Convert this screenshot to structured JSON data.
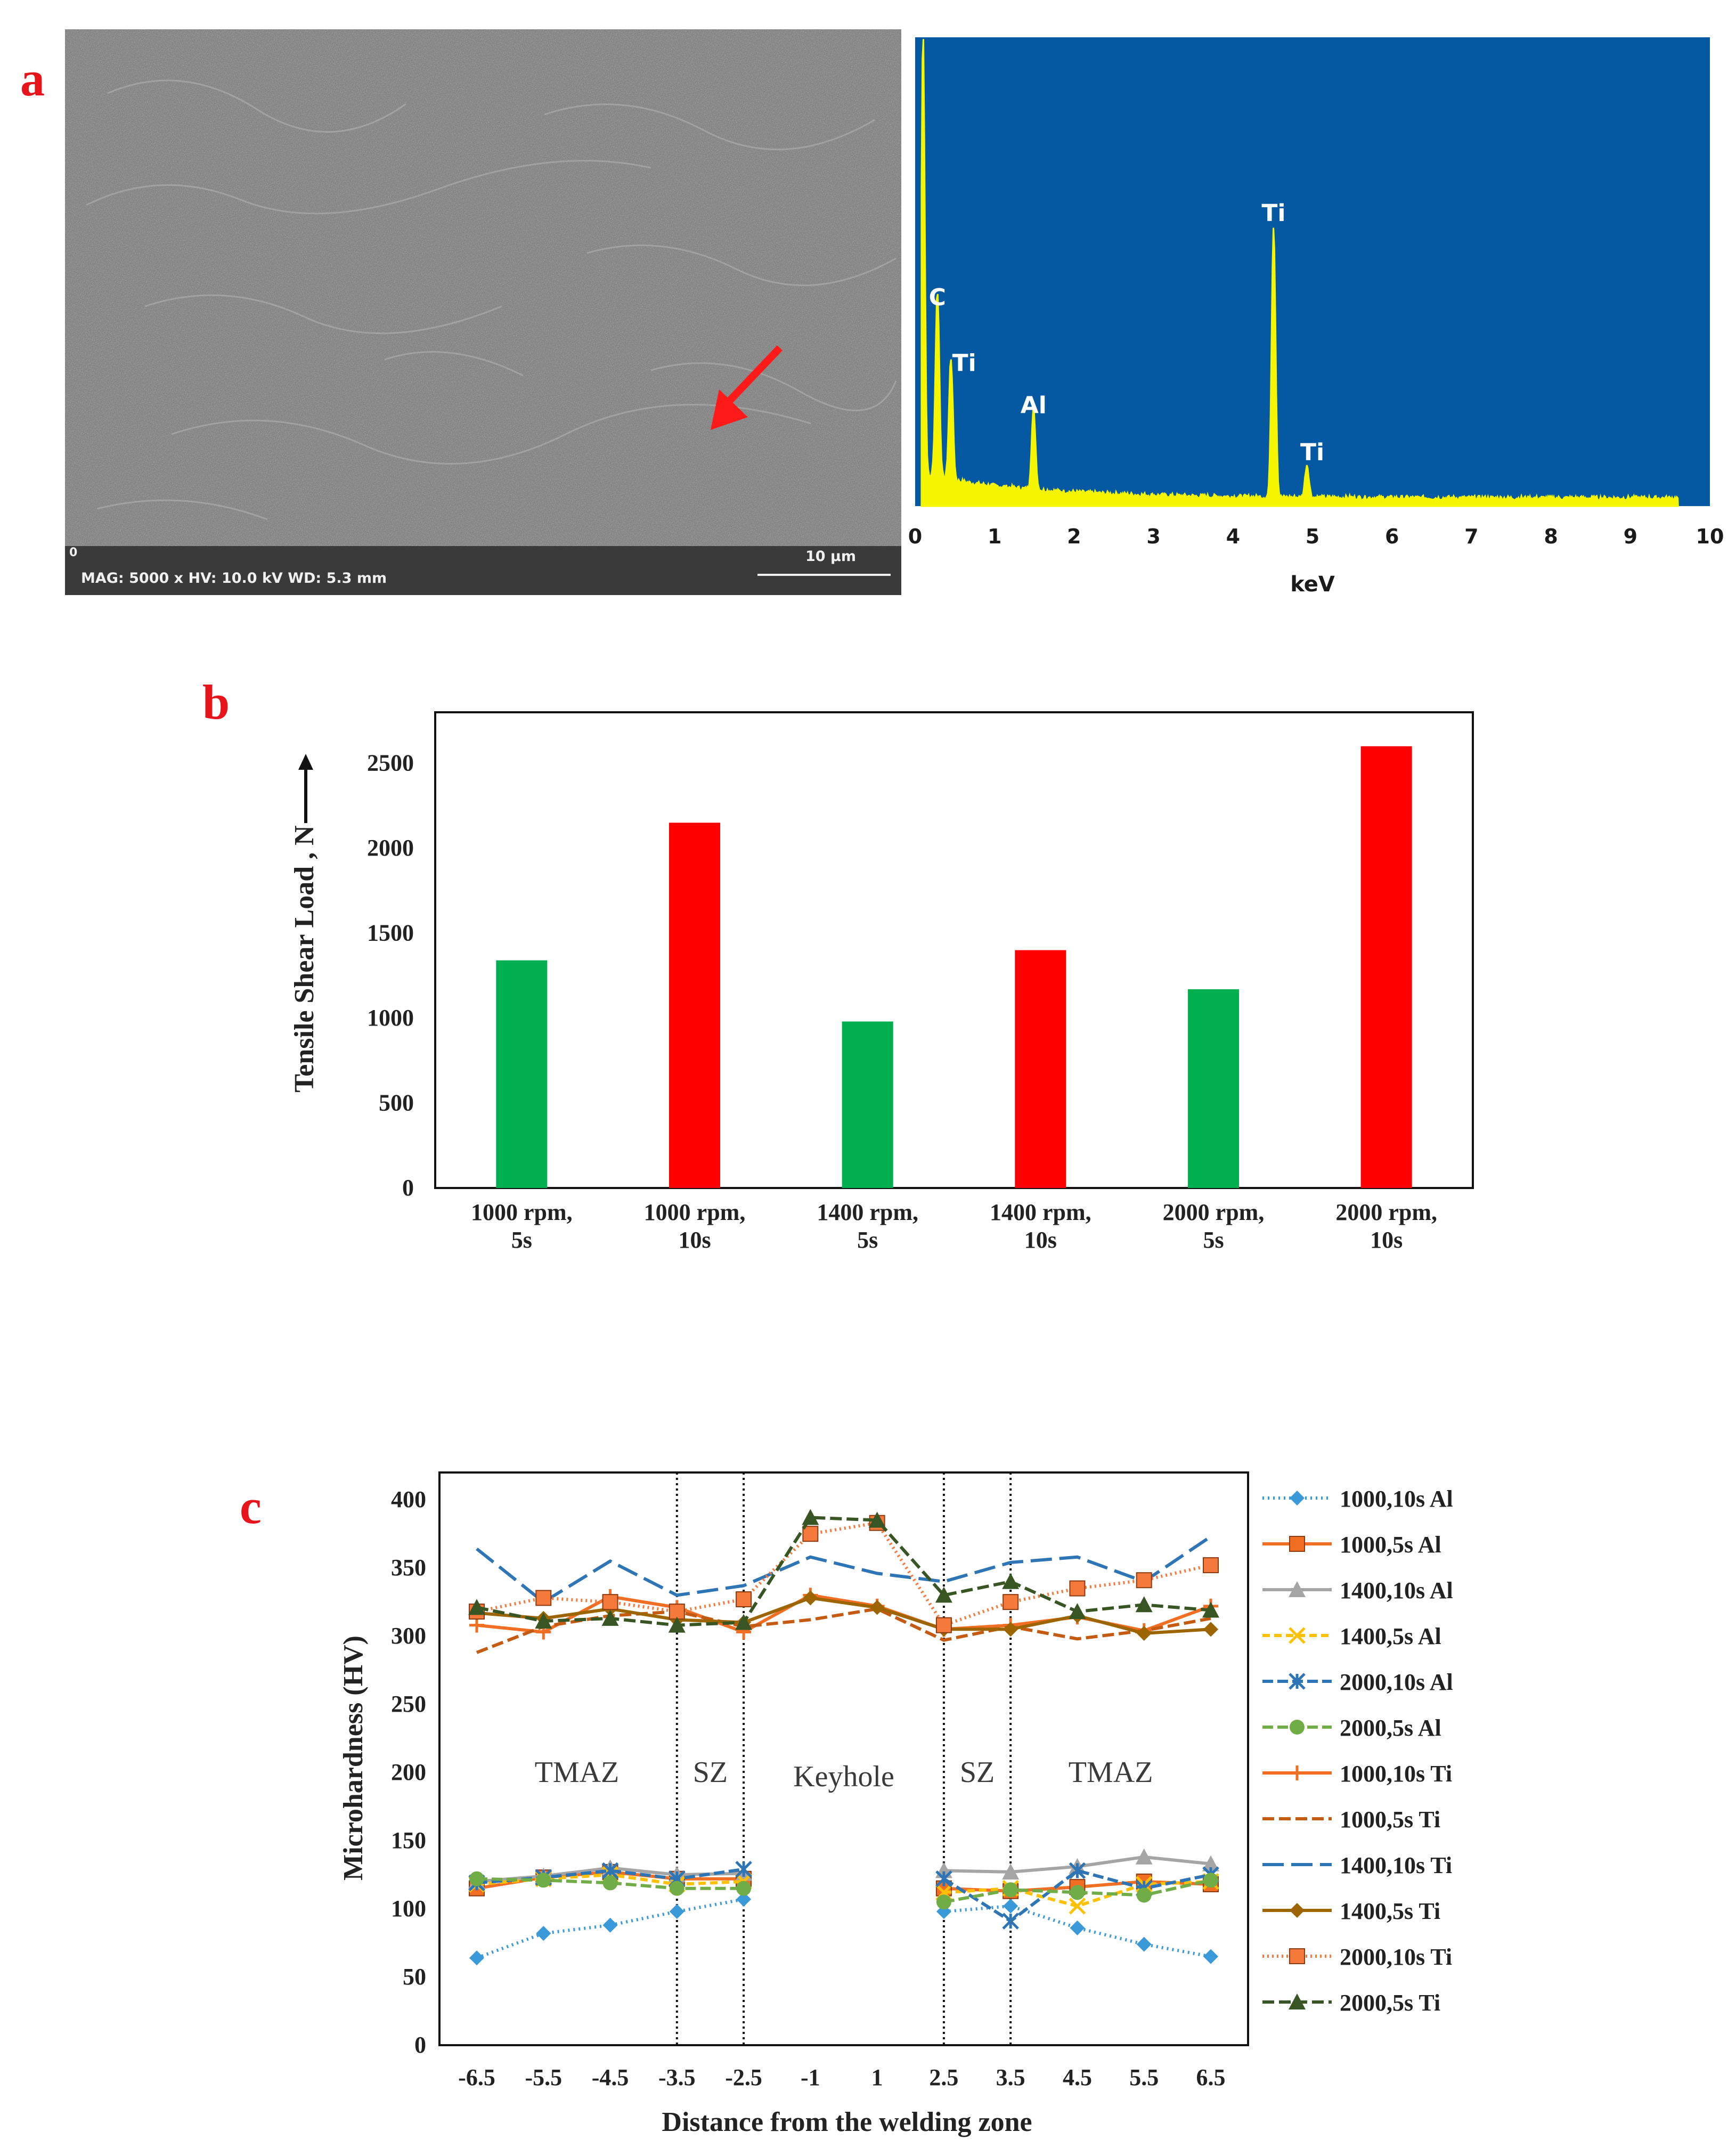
{
  "panels": {
    "a": "a",
    "b": "b",
    "c": "c"
  },
  "sem": {
    "info": "MAG: 5000 x  HV: 10.0 kV  WD: 5.3 mm",
    "scale_label": "10 μm",
    "corner_label": "0",
    "arrow_color": "#ff1a1a"
  },
  "eds": {
    "xlabel": "keV",
    "xticks": [
      "0",
      "1",
      "2",
      "3",
      "4",
      "5",
      "6",
      "7",
      "8",
      "9",
      "10"
    ],
    "background": "#0559a3",
    "trace_color": "#f5f500",
    "peaks": [
      {
        "label": "C",
        "kev": 0.28,
        "height": 0.4
      },
      {
        "label": "Ti",
        "kev": 0.45,
        "height": 0.26
      },
      {
        "label": "Al",
        "kev": 1.49,
        "height": 0.17
      },
      {
        "label": "Ti",
        "kev": 4.51,
        "height": 0.58
      },
      {
        "label": "Ti",
        "kev": 4.93,
        "height": 0.07
      }
    ]
  },
  "chart_data": [
    {
      "type": "bar",
      "ylabel": "Tensile Shear Load , N",
      "yticks": [
        "0",
        "500",
        "1000",
        "1500",
        "2000",
        "2500"
      ],
      "ylim": [
        0,
        2800
      ],
      "categories": [
        [
          "1000 rpm,",
          "5s"
        ],
        [
          "1000 rpm,",
          "10s"
        ],
        [
          "1400 rpm,",
          "5s"
        ],
        [
          "1400 rpm,",
          "10s"
        ],
        [
          "2000 rpm,",
          "5s"
        ],
        [
          "2000 rpm,",
          "10s"
        ]
      ],
      "values": [
        1340,
        2150,
        980,
        1400,
        1170,
        2600
      ],
      "colors": [
        "#00b050",
        "#ff0000",
        "#00b050",
        "#ff0000",
        "#00b050",
        "#ff0000"
      ]
    },
    {
      "type": "line",
      "xlabel": "Distance from the welding zone",
      "ylabel": "Microhardness (HV)",
      "ylim": [
        0,
        420
      ],
      "yticks": [
        "0",
        "50",
        "100",
        "150",
        "200",
        "250",
        "300",
        "350",
        "400"
      ],
      "x_labels": [
        "-6.5",
        "-5.5",
        "-4.5",
        "-3.5",
        "-2.5",
        "-1",
        "1",
        "2.5",
        "3.5",
        "4.5",
        "5.5",
        "6.5"
      ],
      "dividers": [
        "-3.5",
        "-2.5",
        "2.5",
        "3.5"
      ],
      "zones": [
        {
          "label": "TMAZ",
          "at": "-5",
          "y": 200
        },
        {
          "label": "SZ",
          "at": "-3",
          "y": 200
        },
        {
          "label": "Keyhole",
          "at": "0",
          "y": 197
        },
        {
          "label": "SZ",
          "at": "3",
          "y": 200
        },
        {
          "label": "TMAZ",
          "at": "5",
          "y": 200
        }
      ],
      "series": [
        {
          "name": "1000,10s Al",
          "color": "#3a9ad9",
          "dash": "3,7",
          "marker": "diamond",
          "left": [
            64,
            82,
            88,
            98,
            107
          ],
          "right": [
            98,
            102,
            86,
            74,
            65
          ]
        },
        {
          "name": "1000,5s Al",
          "color": "#f26e22",
          "dash": "",
          "marker": "square",
          "left": [
            115,
            123,
            127,
            122,
            122
          ],
          "right": [
            115,
            113,
            116,
            120,
            118
          ]
        },
        {
          "name": "1400,10s Al",
          "color": "#a5a5a5",
          "dash": "",
          "marker": "triangle",
          "left": [
            120,
            124,
            130,
            125,
            126
          ],
          "right": [
            128,
            127,
            131,
            138,
            133
          ]
        },
        {
          "name": "1400,5s Al",
          "color": "#ffc000",
          "dash": "14,8",
          "marker": "x",
          "left": [
            118,
            122,
            125,
            118,
            120
          ],
          "right": [
            112,
            115,
            102,
            118,
            120
          ]
        },
        {
          "name": "2000,10s Al",
          "color": "#2e75b6",
          "dash": "20,8",
          "marker": "star",
          "left": [
            119,
            123,
            128,
            122,
            129
          ],
          "right": [
            122,
            91,
            128,
            115,
            125
          ]
        },
        {
          "name": "2000,5s Al",
          "color": "#70ad47",
          "dash": "20,8",
          "marker": "circle",
          "left": [
            122,
            121,
            119,
            115,
            115
          ],
          "right": [
            105,
            114,
            112,
            110,
            121
          ]
        }
      ],
      "series_ti": [
        {
          "name": "1000,10s Ti",
          "color": "#f26e22",
          "dash": "",
          "marker": "plus",
          "values": [
            308,
            303,
            329,
            321,
            303,
            330,
            322,
            305,
            308,
            314,
            304,
            322
          ]
        },
        {
          "name": "1000,5s Ti",
          "color": "#c55a11",
          "dash": "22,9",
          "marker": "none",
          "values": [
            288,
            307,
            315,
            318,
            307,
            312,
            320,
            297,
            307,
            298,
            304,
            313
          ]
        },
        {
          "name": "1400,10s Ti",
          "color": "#2e75b6",
          "dash": "40,14",
          "marker": "none",
          "values": [
            364,
            325,
            355,
            330,
            337,
            358,
            346,
            340,
            354,
            358,
            340,
            373
          ]
        },
        {
          "name": "1400,5s Ti",
          "color": "#9c6500",
          "dash": "",
          "marker": "diamond",
          "values": [
            317,
            313,
            320,
            312,
            310,
            328,
            321,
            305,
            305,
            315,
            302,
            305
          ]
        },
        {
          "name": "2000,10s Ti",
          "color": "#f4793b",
          "dash": "3,6",
          "marker": "square",
          "values": [
            318,
            328,
            325,
            318,
            327,
            375,
            383,
            308,
            325,
            335,
            341,
            352
          ]
        },
        {
          "name": "2000,5s Ti",
          "color": "#375623",
          "dash": "22,9",
          "marker": "triangle",
          "values": [
            321,
            311,
            313,
            308,
            310,
            387,
            385,
            330,
            340,
            318,
            323,
            319
          ]
        }
      ]
    }
  ]
}
